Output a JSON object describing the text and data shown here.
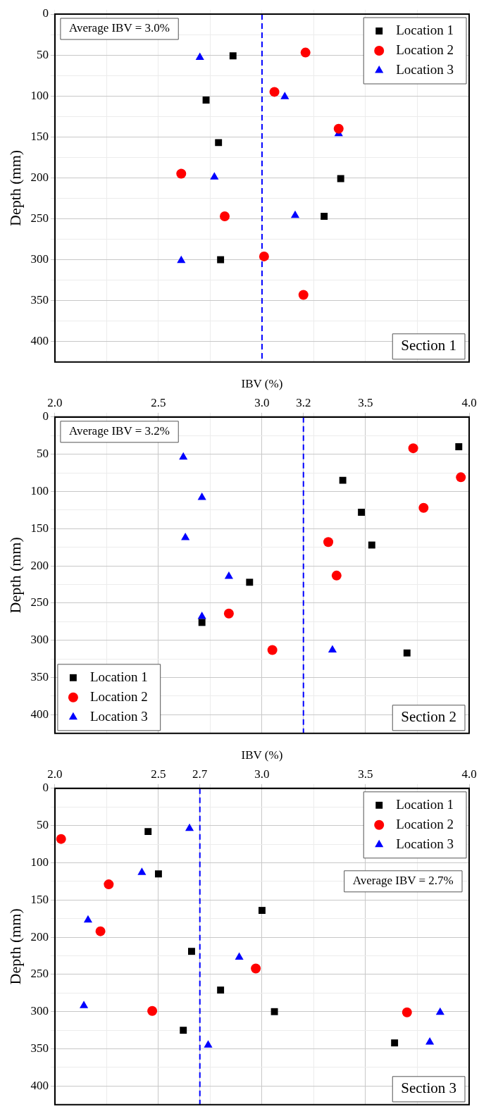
{
  "chart_data": [
    {
      "type": "scatter",
      "ylabel": "Depth (mm)",
      "xlim": [
        2,
        4
      ],
      "ylim": [
        425,
        0
      ],
      "tick_labels": "y",
      "grid": true,
      "legend": "top right",
      "xticks": [
        {
          "value": 2,
          "label": null
        },
        {
          "value": 2.25,
          "label": null
        },
        {
          "value": 2.5,
          "label": null
        },
        {
          "value": 2.75,
          "label": null
        },
        {
          "value": 3,
          "label": null
        },
        {
          "value": 3.25,
          "label": null
        },
        {
          "value": 3.5,
          "label": null
        },
        {
          "value": 3.75,
          "label": null
        },
        {
          "value": 4,
          "label": null
        }
      ],
      "yticks": [
        0,
        {
          "value": 25,
          "label": null
        },
        50,
        {
          "value": 75,
          "label": null
        },
        100,
        {
          "value": 125,
          "label": null
        },
        150,
        {
          "value": 175,
          "label": null
        },
        200,
        {
          "value": 225,
          "label": null
        },
        250,
        {
          "value": 275,
          "label": null
        },
        300,
        {
          "value": 325,
          "label": null
        },
        350,
        {
          "value": 375,
          "label": null
        },
        400
      ],
      "series": [
        {
          "name": "Location 1",
          "color": "#000000",
          "marker": "square",
          "x": [
            2.86,
            2.73,
            2.79,
            3.38,
            3.3,
            2.8
          ],
          "values": [
            51,
            105,
            157,
            201,
            247,
            300
          ]
        },
        {
          "name": "Location 2",
          "color": "#ff0000",
          "marker": "circle",
          "x": [
            3.21,
            3.06,
            3.37,
            2.61,
            2.82,
            3.01,
            3.2
          ],
          "values": [
            47,
            95,
            140,
            195,
            247,
            296,
            343
          ]
        },
        {
          "name": "Location 3",
          "color": "#0000ff",
          "marker": "triangle",
          "x": [
            2.7,
            3.11,
            3.37,
            2.77,
            3.16,
            2.61
          ],
          "values": [
            53,
            101,
            146,
            199,
            246,
            301
          ]
        }
      ],
      "ref_lines": [
        {
          "axis": "x",
          "value": 3,
          "color": "#0000ff",
          "line_style": "dashed"
        }
      ],
      "annotations": [
        "Average IBV = 3.0%",
        "Section 1"
      ]
    },
    {
      "type": "scatter",
      "xlabel": "IBV (%)",
      "ylabel": "Depth (mm)",
      "xlim": [
        2,
        4
      ],
      "ylim": [
        425,
        0
      ],
      "grid": true,
      "legend": "bottom left",
      "xticks": [
        {
          "value": 2,
          "label": "2.0"
        },
        {
          "value": 2.25,
          "label": null
        },
        {
          "value": 2.5,
          "label": "2.5"
        },
        {
          "value": 2.75,
          "label": null
        },
        {
          "value": 3,
          "label": "3.0"
        },
        {
          "value": 3.2,
          "label": "3.2"
        },
        {
          "value": 3.25,
          "label": null
        },
        {
          "value": 3.5,
          "label": "3.5"
        },
        {
          "value": 3.75,
          "label": null
        },
        {
          "value": 4,
          "label": "4.0"
        }
      ],
      "yticks": [
        0,
        {
          "value": 25,
          "label": null
        },
        50,
        {
          "value": 75,
          "label": null
        },
        100,
        {
          "value": 125,
          "label": null
        },
        150,
        {
          "value": 175,
          "label": null
        },
        200,
        {
          "value": 225,
          "label": null
        },
        250,
        {
          "value": 275,
          "label": null
        },
        300,
        {
          "value": 325,
          "label": null
        },
        350,
        {
          "value": 375,
          "label": null
        },
        400
      ],
      "series": [
        {
          "name": "Location 1",
          "color": "#000000",
          "marker": "square",
          "x": [
            3.95,
            3.39,
            3.48,
            3.53,
            2.94,
            2.71,
            3.7
          ],
          "values": [
            40,
            85,
            128,
            172,
            222,
            276,
            317
          ]
        },
        {
          "name": "Location 2",
          "color": "#ff0000",
          "marker": "circle",
          "x": [
            3.73,
            3.96,
            3.78,
            3.32,
            3.36,
            2.84,
            3.05
          ],
          "values": [
            42,
            81,
            122,
            168,
            213,
            264,
            313
          ]
        },
        {
          "name": "Location 3",
          "color": "#0000ff",
          "marker": "triangle",
          "x": [
            2.62,
            2.71,
            2.63,
            2.84,
            2.71,
            3.34
          ],
          "values": [
            54,
            108,
            162,
            214,
            268,
            313
          ]
        }
      ],
      "ref_lines": [
        {
          "axis": "x",
          "value": 3.2,
          "color": "#0000ff",
          "line_style": "dashed"
        }
      ],
      "annotations": [
        "Average IBV = 3.2%",
        "Section 2"
      ]
    },
    {
      "type": "scatter",
      "xlabel": "IBV (%)",
      "ylabel": "Depth (mm)",
      "xlim": [
        2,
        4
      ],
      "ylim": [
        425,
        0
      ],
      "grid": true,
      "legend": "top right",
      "xticks": [
        {
          "value": 2,
          "label": "2.0"
        },
        {
          "value": 2.25,
          "label": null
        },
        {
          "value": 2.5,
          "label": "2.5"
        },
        {
          "value": 2.7,
          "label": "2.7"
        },
        {
          "value": 2.75,
          "label": null
        },
        {
          "value": 3,
          "label": "3.0"
        },
        {
          "value": 3.25,
          "label": null
        },
        {
          "value": 3.5,
          "label": "3.5"
        },
        {
          "value": 3.75,
          "label": null
        },
        {
          "value": 4,
          "label": "4.0"
        }
      ],
      "yticks": [
        0,
        {
          "value": 25,
          "label": null
        },
        50,
        {
          "value": 75,
          "label": null
        },
        100,
        {
          "value": 125,
          "label": null
        },
        150,
        {
          "value": 175,
          "label": null
        },
        200,
        {
          "value": 225,
          "label": null
        },
        250,
        {
          "value": 275,
          "label": null
        },
        300,
        {
          "value": 325,
          "label": null
        },
        350,
        {
          "value": 375,
          "label": null
        },
        400
      ],
      "series": [
        {
          "name": "Location 1",
          "color": "#000000",
          "marker": "square",
          "x": [
            2.45,
            2.5,
            3,
            2.66,
            2.8,
            3.06,
            2.62,
            3.64
          ],
          "values": [
            58,
            115,
            164,
            219,
            271,
            300,
            325,
            342
          ]
        },
        {
          "name": "Location 2",
          "color": "#ff0000",
          "marker": "circle",
          "x": [
            2.03,
            2.26,
            2.22,
            2.97,
            2.47,
            3.7
          ],
          "values": [
            68,
            129,
            192,
            242,
            299,
            301
          ]
        },
        {
          "name": "Location 3",
          "color": "#0000ff",
          "marker": "triangle",
          "x": [
            2.65,
            2.42,
            2.16,
            2.89,
            2.14,
            3.86,
            3.81,
            2.74
          ],
          "values": [
            54,
            113,
            177,
            227,
            292,
            301,
            341,
            345
          ]
        }
      ],
      "ref_lines": [
        {
          "axis": "x",
          "value": 2.7,
          "color": "#0000ff",
          "line_style": "dashed"
        }
      ],
      "annotations": [
        "Average IBV = 2.7%",
        "Section 3"
      ]
    }
  ]
}
